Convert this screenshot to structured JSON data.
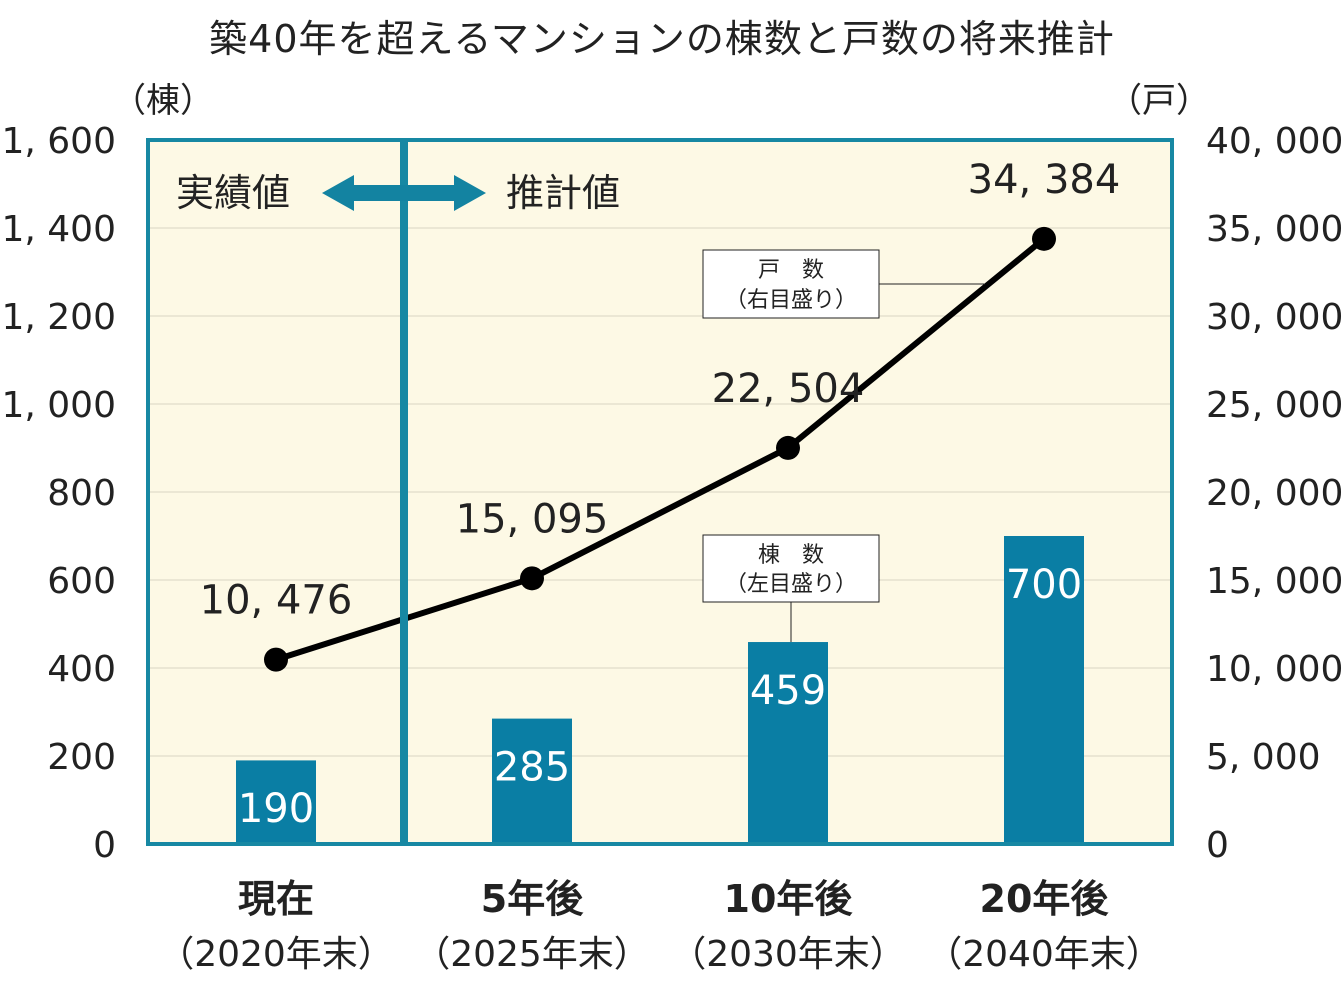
{
  "chart_data": {
    "type": "bar",
    "title": "築40年を超えるマンションの棟数と戸数の将来推計",
    "categories": [
      {
        "line1": "現在",
        "line2": "（2020年末）"
      },
      {
        "line1": "5年後",
        "line2": "（2025年末）"
      },
      {
        "line1": "10年後",
        "line2": "（2030年末）"
      },
      {
        "line1": "20年後",
        "line2": "（2040年末）"
      }
    ],
    "series": [
      {
        "kind": "bar",
        "axis": "left",
        "values": [
          190,
          285,
          459,
          700
        ],
        "labels": [
          "190",
          "285",
          "459",
          "700"
        ],
        "color": "#0a7ea4"
      },
      {
        "kind": "line",
        "axis": "right",
        "values": [
          10476,
          15095,
          22504,
          34384
        ],
        "labels": [
          "10, 476",
          "15, 095",
          "22, 504",
          "34, 384"
        ],
        "color": "#000000"
      }
    ],
    "left_axis": {
      "unit": "（棟）",
      "ylim": [
        0,
        1600
      ],
      "ticks": [
        "0",
        "200",
        "400",
        "600",
        "800",
        "1, 000",
        "1, 200",
        "1, 400",
        "1, 600"
      ]
    },
    "right_axis": {
      "unit": "（戸）",
      "ylim": [
        0,
        40000
      ],
      "ticks": [
        "0",
        "5, 000",
        "10, 000",
        "15, 000",
        "20, 000",
        "25, 000",
        "30, 000",
        "35, 000",
        "40, 000"
      ]
    },
    "grid": true,
    "annotations": {
      "actual": "実績値",
      "projected": "推計値",
      "line_callout": {
        "line1": "戸　数",
        "line2": "（右目盛り）"
      },
      "bar_callout": {
        "line1": "棟　数",
        "line2": "（左目盛り）"
      }
    },
    "colors": {
      "plot_background": "#fdf9e5",
      "frame": "#1788a3",
      "bar": "#0a7ea4",
      "arrow": "#1383a1",
      "line": "#000000"
    }
  }
}
